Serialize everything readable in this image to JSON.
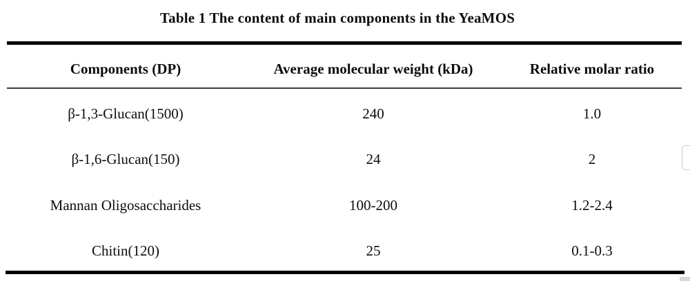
{
  "table": {
    "title": "Table 1 The content of main components in the YeaMOS",
    "columns": [
      "Components (DP)",
      "Average molecular weight (kDa)",
      "Relative molar ratio"
    ],
    "rows": [
      [
        "β-1,3-Glucan(1500)",
        "240",
        "1.0"
      ],
      [
        "β-1,6-Glucan(150)",
        "24",
        "2"
      ],
      [
        "Mannan Oligosaccharides",
        "100-200",
        "1.2-2.4"
      ],
      [
        "Chitin(120)",
        "25",
        "0.1-0.3"
      ]
    ]
  },
  "colors": {
    "text": "#0d0d0d",
    "thick_rule": "#000000",
    "thin_rule": "#3a3a3a",
    "widget_border": "#c9c9c9",
    "background": "#ffffff"
  }
}
